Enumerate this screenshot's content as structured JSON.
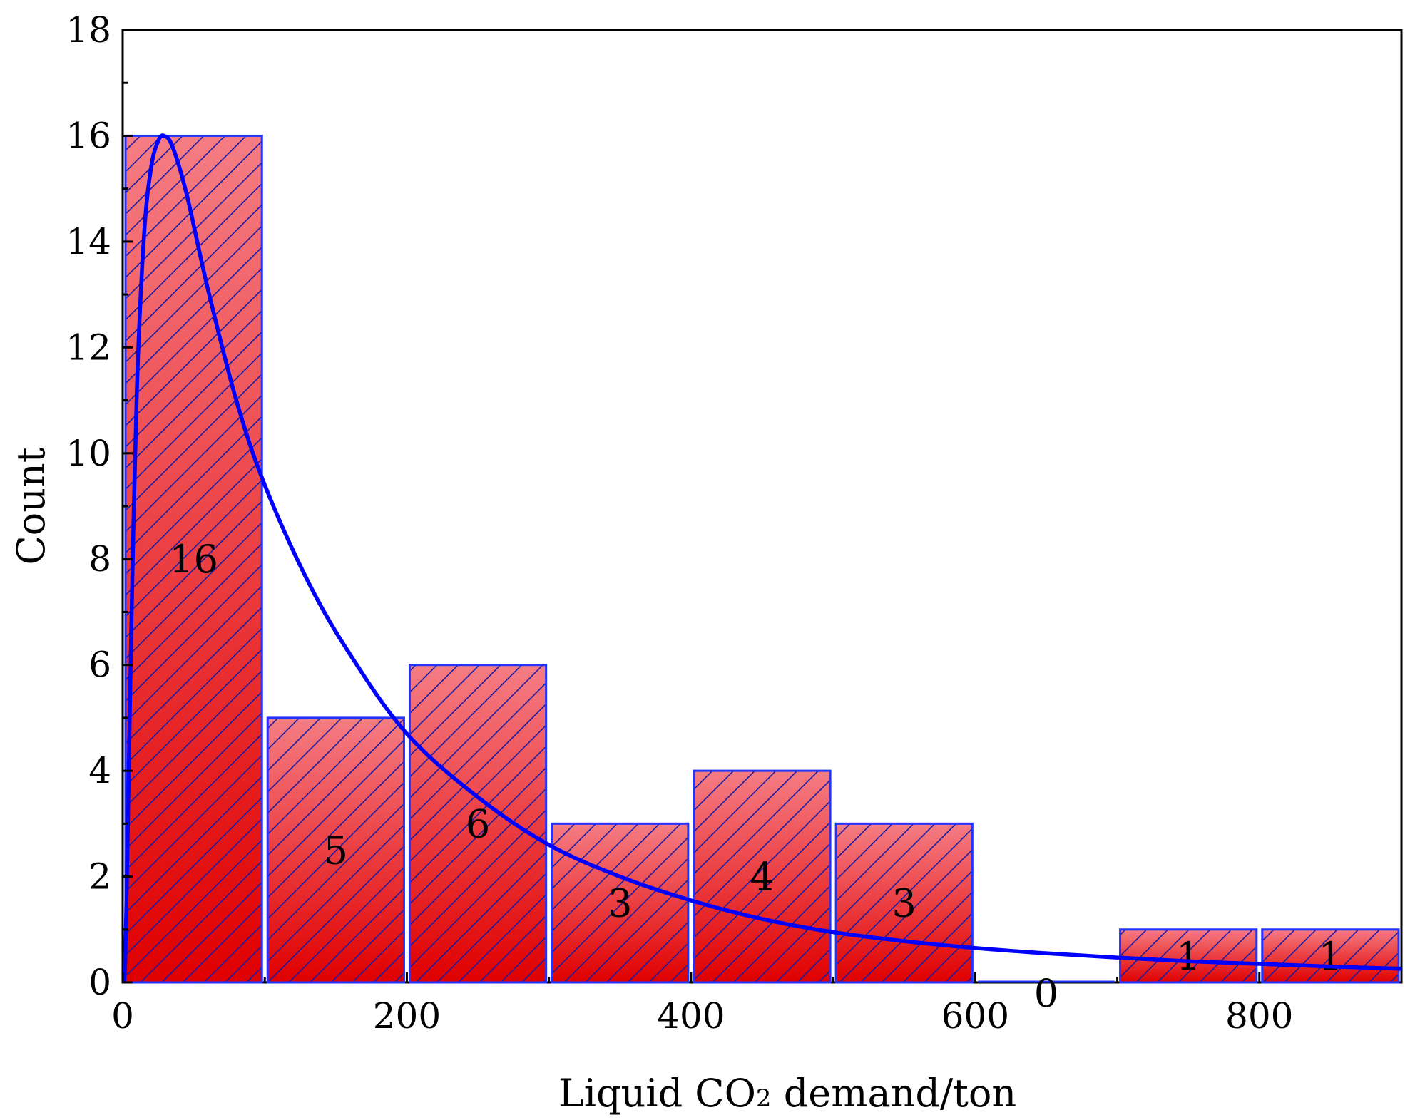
{
  "chart_data": {
    "type": "bar",
    "subtype": "histogram",
    "xlabel_main": "Liquid CO",
    "xlabel_sub": "2",
    "xlabel_rest": " demand/ton",
    "ylabel": "Count",
    "bins": [
      {
        "start": 0,
        "end": 100,
        "count": 16,
        "label": "16"
      },
      {
        "start": 100,
        "end": 200,
        "count": 5,
        "label": "5"
      },
      {
        "start": 200,
        "end": 300,
        "count": 6,
        "label": "6"
      },
      {
        "start": 300,
        "end": 400,
        "count": 3,
        "label": "3"
      },
      {
        "start": 400,
        "end": 500,
        "count": 4,
        "label": "4"
      },
      {
        "start": 500,
        "end": 600,
        "count": 3,
        "label": "3"
      },
      {
        "start": 600,
        "end": 700,
        "count": 0,
        "label": "0"
      },
      {
        "start": 700,
        "end": 800,
        "count": 1,
        "label": "1"
      },
      {
        "start": 800,
        "end": 900,
        "count": 1,
        "label": "1"
      }
    ],
    "xlim": [
      0,
      900
    ],
    "ylim": [
      0,
      18
    ],
    "xticks": [
      0,
      200,
      400,
      600,
      800
    ],
    "yticks": [
      0,
      2,
      4,
      6,
      8,
      10,
      12,
      14,
      16,
      18
    ],
    "fit_curve": {
      "type": "lognormal",
      "mode_x": 29,
      "peak_y": 16,
      "points": [
        [
          1,
          0.02
        ],
        [
          2,
          0.6
        ],
        [
          4,
          3.5
        ],
        [
          6,
          6.6
        ],
        [
          10,
          11.2
        ],
        [
          15,
          14.1
        ],
        [
          20,
          15.4
        ],
        [
          25,
          15.9
        ],
        [
          29,
          16.0
        ],
        [
          35,
          15.8
        ],
        [
          45,
          14.9
        ],
        [
          60,
          13.1
        ],
        [
          80,
          11.0
        ],
        [
          100,
          9.4
        ],
        [
          130,
          7.6
        ],
        [
          160,
          6.2
        ],
        [
          200,
          4.7
        ],
        [
          250,
          3.5
        ],
        [
          300,
          2.6
        ],
        [
          350,
          2.0
        ],
        [
          400,
          1.55
        ],
        [
          450,
          1.2
        ],
        [
          500,
          0.95
        ],
        [
          550,
          0.78
        ],
        [
          600,
          0.65
        ],
        [
          650,
          0.55
        ],
        [
          700,
          0.47
        ],
        [
          750,
          0.4
        ],
        [
          800,
          0.35
        ],
        [
          850,
          0.3
        ],
        [
          900,
          0.26
        ]
      ],
      "color": "#0000ff"
    },
    "colors": {
      "bar_fill_light": "#f0787e",
      "bar_fill_dark": "#dd0000",
      "bar_stroke": "#2233ff",
      "hatch": "#1a1aa0",
      "curve": "#0000ff",
      "axis": "#000000"
    }
  }
}
